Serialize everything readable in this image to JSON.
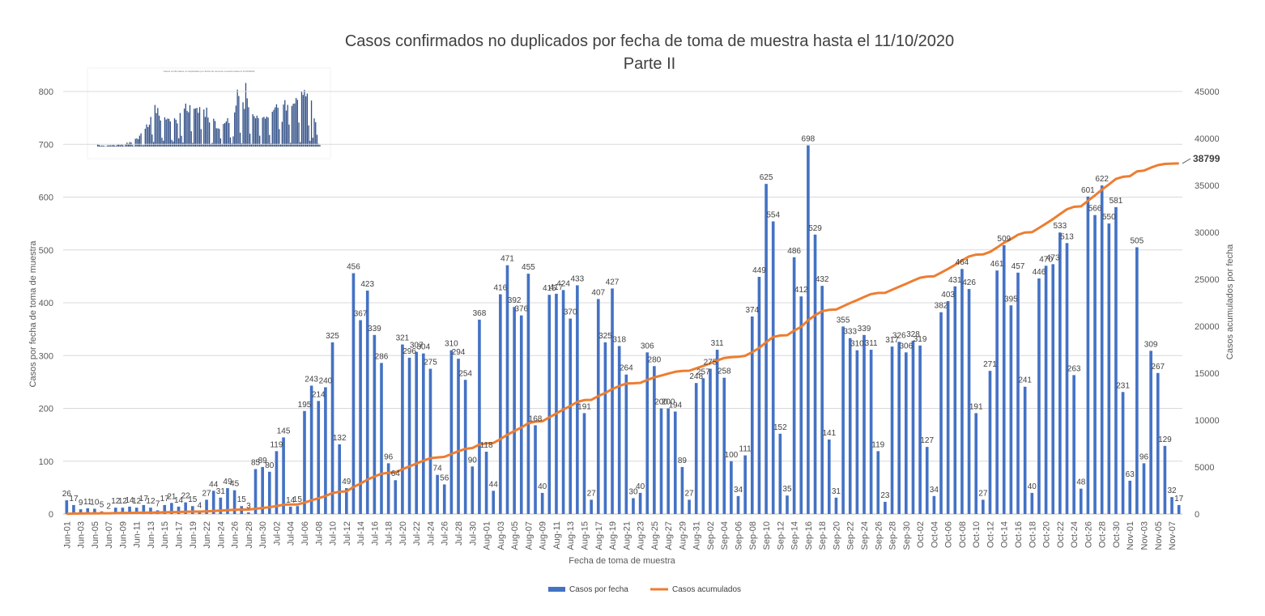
{
  "chart_data": {
    "type": "bar",
    "title": "Casos confirmados no duplicados por fecha de toma de muestra hasta el 11/10/2020",
    "subtitle": "Parte II",
    "xlabel": "Fecha de toma de muestra",
    "ylabel": "Casos por fecha de toma de muestra",
    "y2label": "Casos acumulados por fecha",
    "ylim": [
      0,
      800
    ],
    "y2lim": [
      0,
      45000
    ],
    "yticks": [
      "0",
      "100",
      "200",
      "300",
      "400",
      "500",
      "600",
      "700",
      "800"
    ],
    "y2ticks": [
      "0",
      "5000",
      "10000",
      "15000",
      "20000",
      "25000",
      "30000",
      "35000",
      "40000",
      "45000"
    ],
    "grid": true,
    "legend_position": "bottom",
    "bar_color": "#4472C4",
    "line_color": "#ED7D31",
    "x_tick_labels": [
      "Jun-01",
      "Jun-03",
      "Jun-05",
      "Jun-07",
      "Jun-09",
      "Jun-11",
      "Jun-13",
      "Jun-15",
      "Jun-17",
      "Jun-19",
      "Jun-22",
      "Jun-24",
      "Jun-26",
      "Jun-28",
      "Jun-30",
      "Jul-02",
      "Jul-04",
      "Jul-06",
      "Jul-08",
      "Jul-10",
      "Jul-12",
      "Jul-14",
      "Jul-16",
      "Jul-18",
      "Jul-20",
      "Jul-22",
      "Jul-24",
      "Jul-26",
      "Jul-28",
      "Jul-30",
      "Aug-01",
      "Aug-03",
      "Aug-05",
      "Aug-07",
      "Aug-09",
      "Aug-11",
      "Aug-13",
      "Aug-15",
      "Aug-17",
      "Aug-19",
      "Aug-21",
      "Aug-23",
      "Aug-25",
      "Aug-27",
      "Aug-29",
      "Aug-31",
      "Sep-02",
      "Sep-04",
      "Sep-06",
      "Sep-08",
      "Sep-10",
      "Sep-12",
      "Sep-14",
      "Sep-16",
      "Sep-18",
      "Sep-20",
      "Sep-22",
      "Sep-24",
      "Sep-26",
      "Sep-28",
      "Sep-30",
      "Oct-02",
      "Oct-04",
      "Oct-06",
      "Oct-08",
      "Oct-10",
      "Oct-12",
      "Oct-14",
      "Oct-16",
      "Oct-18",
      "Oct-20",
      "Oct-22",
      "Oct-24",
      "Oct-26",
      "Oct-28",
      "Oct-30",
      "Nov-01",
      "Nov-03",
      "Nov-05",
      "Nov-07"
    ],
    "values": [
      26,
      17,
      9,
      11,
      10,
      5,
      2,
      12,
      12,
      14,
      12,
      17,
      12,
      7,
      17,
      21,
      14,
      22,
      15,
      4,
      27,
      44,
      31,
      49,
      45,
      15,
      3,
      85,
      89,
      80,
      119,
      145,
      14,
      15,
      195,
      243,
      214,
      240,
      325,
      132,
      49,
      456,
      367,
      423,
      339,
      286,
      96,
      64,
      321,
      296,
      307,
      304,
      275,
      74,
      56,
      310,
      294,
      254,
      90,
      368,
      118,
      44,
      416,
      471,
      392,
      376,
      455,
      168,
      40,
      415,
      417,
      424,
      370,
      433,
      191,
      27,
      407,
      325,
      427,
      318,
      264,
      30,
      40,
      306,
      280,
      200,
      200,
      194,
      89,
      27,
      248,
      257,
      275,
      311,
      258,
      100,
      34,
      111,
      374,
      449,
      625,
      554,
      152,
      35,
      486,
      412,
      698,
      529,
      432,
      141,
      31,
      355,
      333,
      310,
      339,
      311,
      119,
      23,
      317,
      326,
      306,
      328,
      319,
      127,
      34,
      382,
      403,
      431,
      464,
      426,
      191,
      27,
      271,
      461,
      509,
      395,
      457,
      241,
      40,
      446,
      470,
      473,
      533,
      513,
      263,
      48,
      601,
      566,
      622,
      550,
      581,
      231,
      63,
      505,
      96,
      309,
      267,
      129,
      32,
      17
    ],
    "value_labels": [
      "26",
      "17",
      "9",
      "11",
      "10",
      "5",
      "2",
      "12",
      "12",
      "14",
      "12",
      "17",
      "12",
      "7",
      "17",
      "21",
      "14",
      "22",
      "15",
      "4",
      "27",
      "44",
      "31",
      "49",
      "45",
      "15",
      "3",
      "85",
      "89",
      "80",
      "119",
      "145",
      "14",
      "15",
      "195",
      "243",
      "214",
      "240",
      "325",
      "132",
      "49",
      "456",
      "367",
      "423",
      "339",
      "286",
      "96",
      "64",
      "321",
      "296",
      "307",
      "304",
      "275",
      "74",
      "56",
      "310",
      "294",
      "254",
      "90",
      "368",
      "118",
      "44",
      "416",
      "471",
      "392",
      "376",
      "455",
      "168",
      "40",
      "415",
      "417",
      "424",
      "370",
      "433",
      "191",
      "27",
      "407",
      "325",
      "427",
      "318",
      "264",
      "30",
      "40",
      "306",
      "280",
      "200",
      "200",
      "194",
      "89",
      "27",
      "248",
      "257",
      "275",
      "311",
      "258",
      "100",
      "34",
      "111",
      "374",
      "449",
      "625",
      "554",
      "152",
      "35",
      "486",
      "412",
      "698",
      "529",
      "432",
      "141",
      "31",
      "355",
      "333",
      "310",
      "339",
      "311",
      "119",
      "23",
      "317",
      "326",
      "306",
      "328",
      "319",
      "127",
      "34",
      "382",
      "403",
      "431",
      "464",
      "426",
      "191",
      "27",
      "271",
      "461",
      "509",
      "395",
      "457",
      "241",
      "40",
      "446",
      "470",
      "473",
      "533",
      "513",
      "263",
      "48",
      "601",
      "566",
      "622",
      "550",
      "581",
      "231",
      "63",
      "505",
      "96",
      "309",
      "267",
      "129",
      "32",
      "17"
    ],
    "final_cumulative_label": "38799",
    "series": [
      {
        "name": "Casos por fecha",
        "type": "bar",
        "axis": "left"
      },
      {
        "name": "Casos acumulados",
        "type": "line",
        "axis": "right"
      }
    ]
  }
}
